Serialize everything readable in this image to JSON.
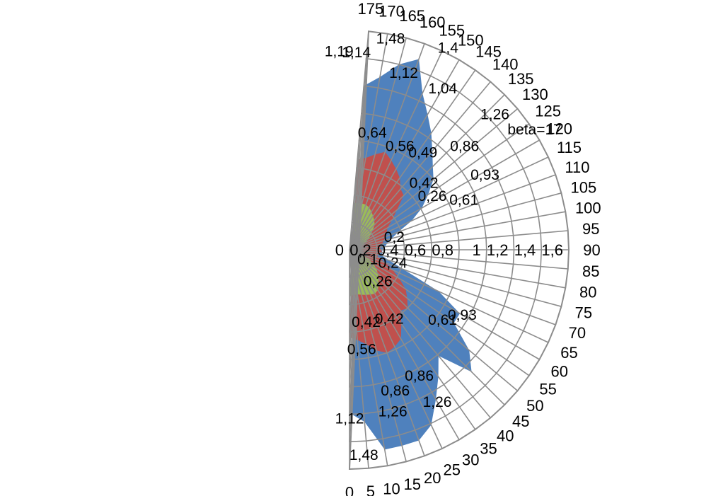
{
  "chart_data": {
    "type": "radar",
    "angle_labels": [
      "0",
      "5",
      "10",
      "15",
      "20",
      "25",
      "30",
      "35",
      "40",
      "45",
      "50",
      "55",
      "60",
      "65",
      "70",
      "75",
      "80",
      "85",
      "90",
      "95",
      "100",
      "105",
      "110",
      "115",
      "120",
      "125",
      "130",
      "135",
      "140",
      "145",
      "150",
      "155",
      "160",
      "165",
      "170",
      "175"
    ],
    "radial_ticks": [
      "0",
      "0,2",
      "0,4",
      "0,6",
      "0,8",
      "1",
      "1,2",
      "1,4",
      "1,6"
    ],
    "rlim": [
      0,
      1.6
    ],
    "grid": true,
    "colors": {
      "outer": "#4f81bd",
      "middle": "#c0504d",
      "inner": "#9bbb59",
      "grid": "#8c8c8c"
    },
    "series": [
      {
        "color": "outer",
        "values": [
          1.19,
          1.26,
          1.48,
          1.48,
          1.48,
          1.41,
          1.26,
          1.13,
          1.01,
          1.26,
          1.14,
          0.93,
          0.93,
          0.72,
          0.42,
          0.3,
          0.24,
          0.24,
          0.24,
          0.26,
          0.28,
          0.32,
          0.38,
          0.5,
          0.61,
          0.7,
          0.8,
          0.86,
          0.94,
          1.04,
          1.14,
          1.26,
          1.48,
          1.4,
          1.28,
          1.2
        ]
      },
      {
        "color": "middle",
        "values": [
          0.64,
          0.66,
          0.7,
          0.76,
          0.8,
          0.78,
          0.75,
          0.66,
          0.58,
          0.6,
          0.55,
          0.5,
          0.42,
          0.35,
          0.28,
          0.22,
          0.2,
          0.24,
          0.23,
          0.22,
          0.24,
          0.26,
          0.28,
          0.3,
          0.32,
          0.38,
          0.45,
          0.56,
          0.58,
          0.64,
          0.68,
          0.72,
          0.76,
          0.72,
          0.68,
          0.66
        ]
      },
      {
        "color": "inner",
        "values": [
          0.34,
          0.33,
          0.33,
          0.34,
          0.35,
          0.36,
          0.37,
          0.36,
          0.33,
          0.3,
          0.27,
          0.24,
          0.2,
          0.15,
          0.1,
          0.08,
          0.06,
          0.05,
          0.05,
          0.05,
          0.06,
          0.07,
          0.1,
          0.13,
          0.16,
          0.19,
          0.22,
          0.26,
          0.28,
          0.3,
          0.32,
          0.34,
          0.35,
          0.35,
          0.35,
          0.34
        ]
      }
    ],
    "data_labels": [
      {
        "text": "beta=17",
        "angle": 123,
        "r": 1.61
      },
      {
        "text": "0,93",
        "angle": 119,
        "r": 1.13
      },
      {
        "text": "0,61",
        "angle": 113.5,
        "r": 0.91
      },
      {
        "text": "0,26",
        "angle": 123,
        "r": 0.72
      },
      {
        "text": "0,2",
        "angle": 106,
        "r": 0.34
      },
      {
        "text": "1,26",
        "angle": 133,
        "r": 1.45
      },
      {
        "text": "0,86",
        "angle": 132,
        "r": 1.13
      },
      {
        "text": "0,42",
        "angle": 132,
        "r": 0.73
      },
      {
        "text": "0,49",
        "angle": 143,
        "r": 0.89
      },
      {
        "text": "1,04",
        "angle": 150,
        "r": 1.36
      },
      {
        "text": "0,56",
        "angle": 154,
        "r": 0.84
      },
      {
        "text": "1,4",
        "angle": 154,
        "r": 1.64
      },
      {
        "text": "0,64",
        "angle": 169,
        "r": 0.87
      },
      {
        "text": "1,12",
        "angle": 163,
        "r": 1.35
      },
      {
        "text": "1,48",
        "angle": 169,
        "r": 1.57
      },
      {
        "text": "1,14",
        "angle": 178,
        "r": 1.44
      },
      {
        "text": "1,19",
        "angle": 183,
        "r": 1.45
      },
      {
        "text": "0,24",
        "angle": 73,
        "r": 0.33
      },
      {
        "text": "0,1",
        "angle": 62,
        "r": 0.15
      },
      {
        "text": "0,26",
        "angle": 42,
        "r": 0.31
      },
      {
        "text": "0,93",
        "angle": 60,
        "r": 0.95
      },
      {
        "text": "0,61",
        "angle": 53,
        "r": 0.85
      },
      {
        "text": "1,26",
        "angle": 30,
        "r": 1.28
      },
      {
        "text": "0,86",
        "angle": 29,
        "r": 1.05
      },
      {
        "text": "0,42",
        "angle": 30,
        "r": 0.58
      },
      {
        "text": "0,42",
        "angle": 13,
        "r": 0.54
      },
      {
        "text": "0,56",
        "angle": 7,
        "r": 0.73
      },
      {
        "text": "0,86",
        "angle": 18,
        "r": 1.08
      },
      {
        "text": "1,26",
        "angle": 15,
        "r": 1.22
      },
      {
        "text": "1,12",
        "angle": 0,
        "r": 1.23
      },
      {
        "text": "1,48",
        "angle": 4,
        "r": 1.5
      }
    ]
  }
}
